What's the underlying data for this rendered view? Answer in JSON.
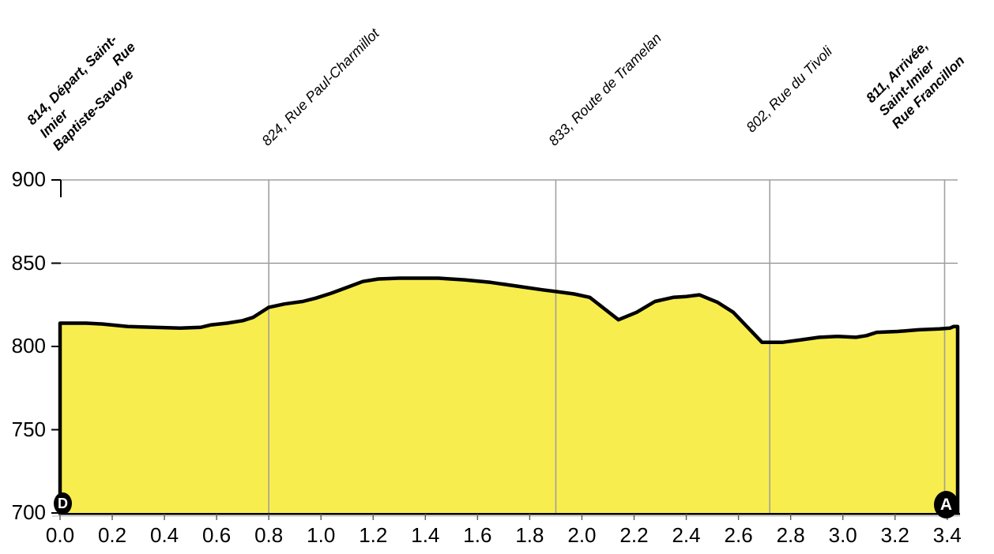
{
  "chart_data": {
    "type": "area",
    "title": "",
    "xlabel": "",
    "ylabel": "",
    "x_unit": "km",
    "y_unit": "m",
    "xlim": [
      0,
      3.44
    ],
    "ylim": [
      700,
      900
    ],
    "grid": true,
    "y_ticks": [
      700,
      750,
      800,
      850,
      900
    ],
    "x_tick_labels": [
      "0.0",
      "0.2",
      "0.4",
      "0.6",
      "0.8",
      "1.0",
      "1.2",
      "1.4",
      "1.6",
      "1.8",
      "2.0",
      "2.2",
      "2.4",
      "2.6",
      "2.8",
      "3.0",
      "3.2",
      "3.4"
    ],
    "markers": {
      "start": "D",
      "end": "A"
    },
    "waypoints": [
      {
        "x": 0.0,
        "elevation": 814,
        "bold": true,
        "gridline": false,
        "label_lines": [
          "814, Départ, Saint-",
          "Imier                  Rue",
          "Baptiste-Savoye"
        ]
      },
      {
        "x": 0.8,
        "elevation": 824,
        "bold": false,
        "gridline": true,
        "label_lines": [
          "824, Rue Paul-Charmillot"
        ]
      },
      {
        "x": 1.9,
        "elevation": 833,
        "bold": false,
        "gridline": true,
        "label_lines": [
          "833, Route de Tramelan"
        ]
      },
      {
        "x": 2.72,
        "elevation": 802,
        "bold": false,
        "gridline": true,
        "label_lines": [
          "802, Rue du Tivoli"
        ]
      },
      {
        "x": 3.39,
        "elevation": 811,
        "bold": true,
        "gridline": true,
        "label_lines": [
          "811, Arrivée,",
          "Saint-Imier",
          "Rue Francillon"
        ]
      }
    ],
    "profile_points": [
      [
        0.0,
        814
      ],
      [
        0.1,
        814
      ],
      [
        0.16,
        813.5
      ],
      [
        0.26,
        812
      ],
      [
        0.36,
        811.5
      ],
      [
        0.46,
        811
      ],
      [
        0.54,
        811.5
      ],
      [
        0.58,
        813
      ],
      [
        0.64,
        814
      ],
      [
        0.7,
        815.5
      ],
      [
        0.74,
        817.5
      ],
      [
        0.8,
        823.5
      ],
      [
        0.86,
        825.5
      ],
      [
        0.93,
        827
      ],
      [
        0.98,
        829
      ],
      [
        1.04,
        832
      ],
      [
        1.1,
        835.5
      ],
      [
        1.16,
        839
      ],
      [
        1.22,
        840.5
      ],
      [
        1.3,
        841
      ],
      [
        1.45,
        841
      ],
      [
        1.55,
        840
      ],
      [
        1.65,
        838.5
      ],
      [
        1.76,
        836
      ],
      [
        1.85,
        834
      ],
      [
        1.9,
        833
      ],
      [
        1.97,
        831.5
      ],
      [
        2.03,
        829.5
      ],
      [
        2.14,
        816
      ],
      [
        2.21,
        820.5
      ],
      [
        2.28,
        827
      ],
      [
        2.35,
        829.5
      ],
      [
        2.4,
        830
      ],
      [
        2.45,
        831
      ],
      [
        2.52,
        826.5
      ],
      [
        2.58,
        820.5
      ],
      [
        2.69,
        802.5
      ],
      [
        2.77,
        802.5
      ],
      [
        2.84,
        804
      ],
      [
        2.91,
        805.5
      ],
      [
        2.98,
        806
      ],
      [
        3.05,
        805.5
      ],
      [
        3.09,
        806.5
      ],
      [
        3.13,
        808.5
      ],
      [
        3.21,
        809
      ],
      [
        3.29,
        810
      ],
      [
        3.37,
        810.5
      ],
      [
        3.41,
        811
      ],
      [
        3.425,
        812
      ],
      [
        3.44,
        812
      ]
    ],
    "colors": {
      "fill": "#F8ED4E",
      "profile_line": "#000000",
      "vertical_grid": "#A0A0A0",
      "horizontal_grid": "#8C8C8C",
      "axis": "#000000",
      "axis_shadow": "#C6C6C6",
      "marker_bg": "#000000",
      "marker_text": "#FFFFFF"
    }
  }
}
